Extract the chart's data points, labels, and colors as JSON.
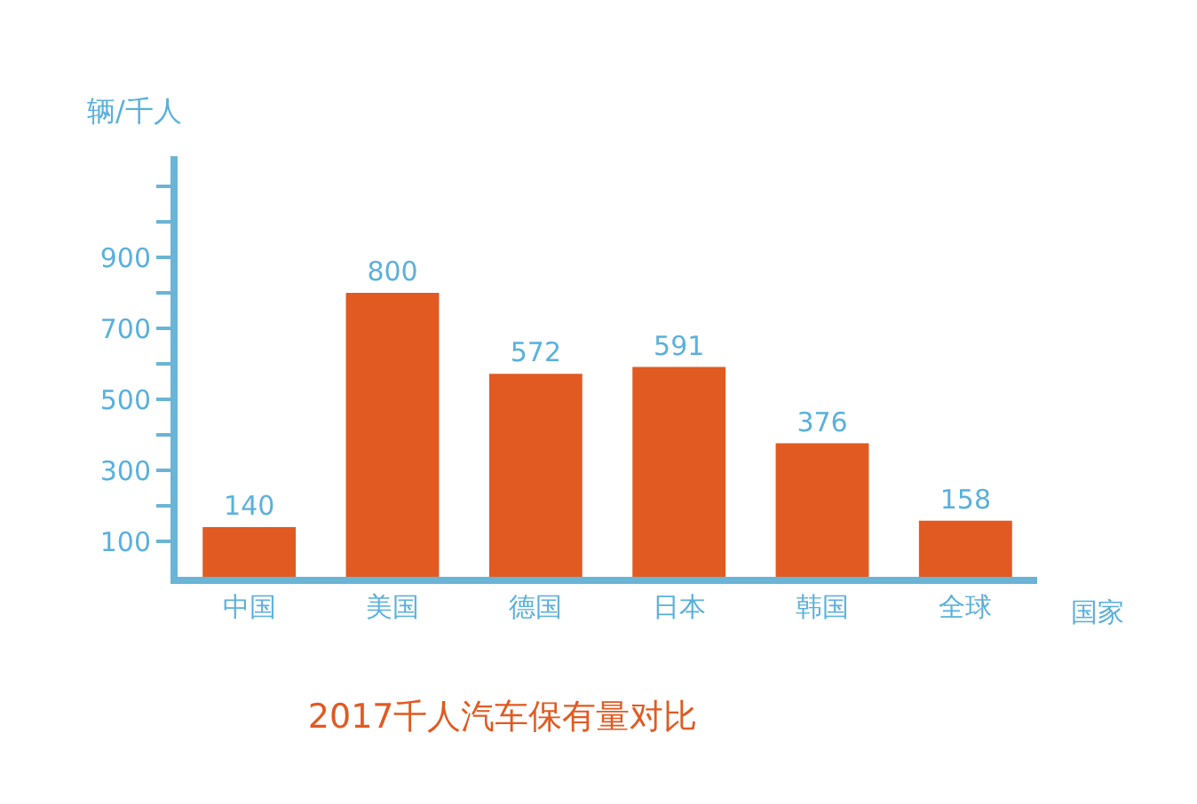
{
  "chart_data": {
    "type": "bar",
    "title": "2017千人汽车保有量对比",
    "xlabel": "国家",
    "ylabel": "辆/千人",
    "categories": [
      "中国",
      "美国",
      "德国",
      "日本",
      "韩国",
      "全球"
    ],
    "values": [
      140,
      800,
      572,
      591,
      376,
      158
    ],
    "color": "#e05a22",
    "data_labels": true,
    "ylim": [
      0,
      1185
    ],
    "yticks": [
      100,
      {
        "value": 200,
        "label": null
      },
      300,
      {
        "value": 400,
        "label": null
      },
      500,
      {
        "value": 600,
        "label": null
      },
      700,
      {
        "value": 800,
        "label": null
      },
      900,
      {
        "value": 1000,
        "label": null
      },
      {
        "value": 1100,
        "label": null
      }
    ],
    "tick_labels": "xy"
  }
}
